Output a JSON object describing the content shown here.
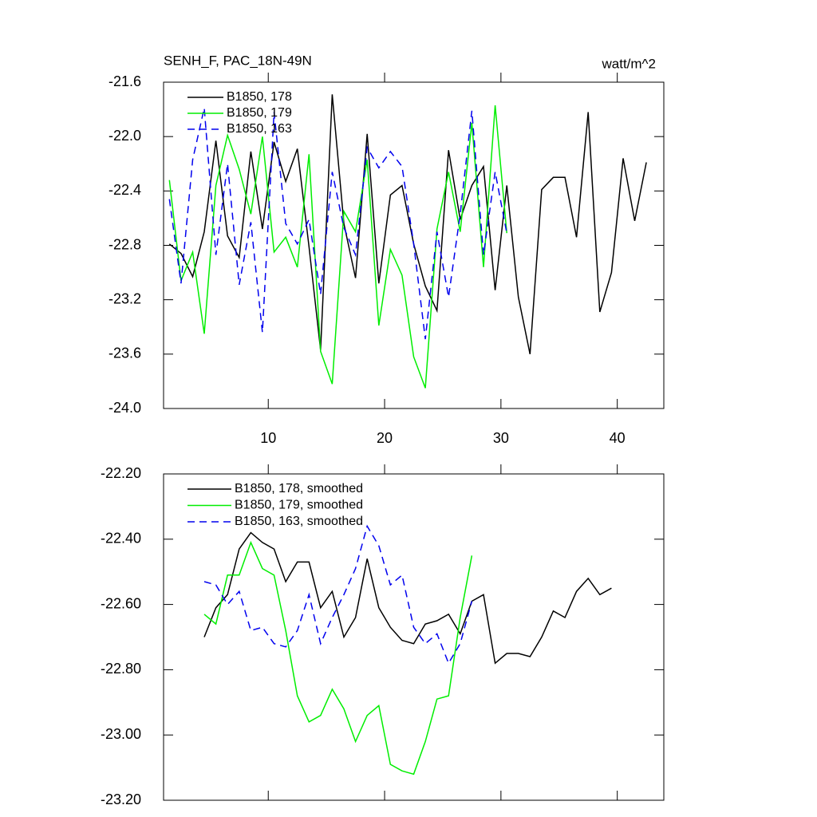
{
  "chart_data": [
    {
      "type": "line",
      "title": "SENH_F, PAC_18N-49N",
      "right_title": "watt/m^2",
      "xlim": [
        1,
        44
      ],
      "xticks": [
        10,
        20,
        30,
        40
      ],
      "show_xtick_labels": true,
      "ylim": [
        -24.0,
        -21.6
      ],
      "yticks": [
        -21.6,
        {
          "value": -22.0,
          "label": "-22.0"
        },
        -22.4,
        -22.8,
        -23.2,
        -23.6,
        {
          "value": -24.0,
          "label": "-24.0"
        }
      ],
      "legend": "upper left",
      "series": [
        {
          "name": "B1850, 178",
          "color": "#000000",
          "dashed": false,
          "x": [
            1.5,
            2.5,
            3.5,
            4.5,
            5.5,
            6.5,
            7.5,
            8.5,
            9.5,
            10.5,
            11.5,
            12.5,
            13.5,
            14.5,
            15.5,
            16.5,
            17.5,
            18.5,
            19.5,
            20.5,
            21.5,
            22.5,
            23.5,
            24.5,
            25.5,
            26.5,
            27.5,
            28.5,
            29.5,
            30.5,
            31.5,
            32.5,
            33.5,
            34.5,
            35.5,
            36.5,
            37.5,
            38.5,
            39.5,
            40.5,
            41.5,
            42.5
          ],
          "values": [
            -22.79,
            -22.86,
            -23.03,
            -22.7,
            -22.03,
            -22.73,
            -22.89,
            -22.11,
            -22.68,
            -22.04,
            -22.33,
            -22.09,
            -22.81,
            -23.57,
            -21.69,
            -22.64,
            -23.04,
            -21.98,
            -23.08,
            -22.43,
            -22.36,
            -22.79,
            -23.1,
            -23.28,
            -22.1,
            -22.61,
            -22.36,
            -22.22,
            -23.13,
            -22.36,
            -23.18,
            -23.6,
            -22.39,
            -22.3,
            -22.3,
            -22.74,
            -21.82,
            -23.29,
            -23.0,
            -22.16,
            -22.62,
            -22.19
          ]
        },
        {
          "name": "B1850, 179",
          "color": "#00ee00",
          "dashed": false,
          "x": [
            1.5,
            2.5,
            3.5,
            4.5,
            5.5,
            6.5,
            7.5,
            8.5,
            9.5,
            10.5,
            11.5,
            12.5,
            13.5,
            14.5,
            15.5,
            16.5,
            17.5,
            18.5,
            19.5,
            20.5,
            21.5,
            22.5,
            23.5,
            24.5,
            25.5,
            26.5,
            27.5,
            28.5,
            29.5,
            30.5
          ],
          "values": [
            -22.32,
            -23.06,
            -22.85,
            -23.45,
            -22.36,
            -21.99,
            -22.24,
            -22.57,
            -22.0,
            -22.85,
            -22.74,
            -22.96,
            -22.13,
            -23.58,
            -23.82,
            -22.55,
            -22.7,
            -22.17,
            -23.39,
            -22.83,
            -23.02,
            -23.62,
            -23.85,
            -22.68,
            -22.26,
            -22.7,
            -21.9,
            -22.96,
            -21.77,
            -22.71
          ]
        },
        {
          "name": "B1850, 163",
          "color": "#0000ee",
          "dashed": true,
          "x": [
            1.5,
            2.5,
            3.5,
            4.5,
            5.5,
            6.5,
            7.5,
            8.5,
            9.5,
            10.5,
            11.5,
            12.5,
            13.5,
            14.5,
            15.5,
            16.5,
            17.5,
            18.5,
            19.5,
            20.5,
            21.5,
            22.5,
            23.5,
            24.5,
            25.5,
            26.5,
            27.5,
            28.5,
            29.5,
            30.5
          ],
          "values": [
            -22.46,
            -23.08,
            -22.17,
            -21.79,
            -22.87,
            -22.2,
            -23.09,
            -22.63,
            -23.44,
            -21.82,
            -22.64,
            -22.79,
            -22.61,
            -23.16,
            -22.26,
            -22.67,
            -22.87,
            -22.08,
            -22.23,
            -22.11,
            -22.22,
            -22.79,
            -23.49,
            -22.7,
            -23.18,
            -22.57,
            -21.81,
            -22.87,
            -22.26,
            -22.71
          ]
        }
      ]
    },
    {
      "type": "line",
      "xlim": [
        1,
        44
      ],
      "xticks": [
        10,
        20,
        30,
        40
      ],
      "show_xtick_labels": false,
      "ylim": [
        -23.2,
        -22.2
      ],
      "yticks": [
        {
          "value": -22.2,
          "label": "-22.20"
        },
        {
          "value": -22.4,
          "label": "-22.40"
        },
        {
          "value": -22.6,
          "label": "-22.60"
        },
        {
          "value": -22.8,
          "label": "-22.80"
        },
        {
          "value": -23.0,
          "label": "-23.00"
        },
        {
          "value": -23.2,
          "label": "-23.20"
        }
      ],
      "legend": "upper left",
      "series": [
        {
          "name": "B1850, 178, smoothed",
          "color": "#000000",
          "dashed": false,
          "x": [
            4.5,
            5.5,
            6.5,
            7.5,
            8.5,
            9.5,
            10.5,
            11.5,
            12.5,
            13.5,
            14.5,
            15.5,
            16.5,
            17.5,
            18.5,
            19.5,
            20.5,
            21.5,
            22.5,
            23.5,
            24.5,
            25.5,
            26.5,
            27.5,
            28.5,
            29.5,
            30.5,
            31.5,
            32.5,
            33.5,
            34.5,
            35.5,
            36.5,
            37.5,
            38.5,
            39.5
          ],
          "values": [
            -22.7,
            -22.61,
            -22.57,
            -22.43,
            -22.38,
            -22.41,
            -22.43,
            -22.53,
            -22.47,
            -22.47,
            -22.61,
            -22.56,
            -22.7,
            -22.64,
            -22.46,
            -22.61,
            -22.67,
            -22.71,
            -22.72,
            -22.66,
            -22.65,
            -22.63,
            -22.69,
            -22.59,
            -22.57,
            -22.78,
            -22.75,
            -22.75,
            -22.76,
            -22.7,
            -22.62,
            -22.64,
            -22.56,
            -22.52,
            -22.57,
            -22.55
          ]
        },
        {
          "name": "B1850, 179, smoothed",
          "color": "#00ee00",
          "dashed": false,
          "x": [
            4.5,
            5.5,
            6.5,
            7.5,
            8.5,
            9.5,
            10.5,
            11.5,
            12.5,
            13.5,
            14.5,
            15.5,
            16.5,
            17.5,
            18.5,
            19.5,
            20.5,
            21.5,
            22.5,
            23.5,
            24.5,
            25.5,
            26.5,
            27.5
          ],
          "values": [
            -22.63,
            -22.66,
            -22.51,
            -22.51,
            -22.41,
            -22.49,
            -22.51,
            -22.68,
            -22.88,
            -22.96,
            -22.94,
            -22.86,
            -22.92,
            -23.02,
            -22.94,
            -22.91,
            -23.09,
            -23.11,
            -23.12,
            -23.02,
            -22.89,
            -22.88,
            -22.64,
            -22.45
          ]
        },
        {
          "name": "B1850, 163, smoothed",
          "color": "#0000ee",
          "dashed": true,
          "x": [
            4.5,
            5.5,
            6.5,
            7.5,
            8.5,
            9.5,
            10.5,
            11.5,
            12.5,
            13.5,
            14.5,
            15.5,
            16.5,
            17.5,
            18.5,
            19.5,
            20.5,
            21.5,
            22.5,
            23.5,
            24.5,
            25.5,
            26.5,
            27.5
          ],
          "values": [
            -22.53,
            -22.54,
            -22.6,
            -22.56,
            -22.68,
            -22.67,
            -22.72,
            -22.73,
            -22.68,
            -22.57,
            -22.72,
            -22.64,
            -22.57,
            -22.49,
            -22.36,
            -22.42,
            -22.54,
            -22.51,
            -22.67,
            -22.72,
            -22.69,
            -22.78,
            -22.72,
            -22.59
          ]
        }
      ]
    }
  ]
}
